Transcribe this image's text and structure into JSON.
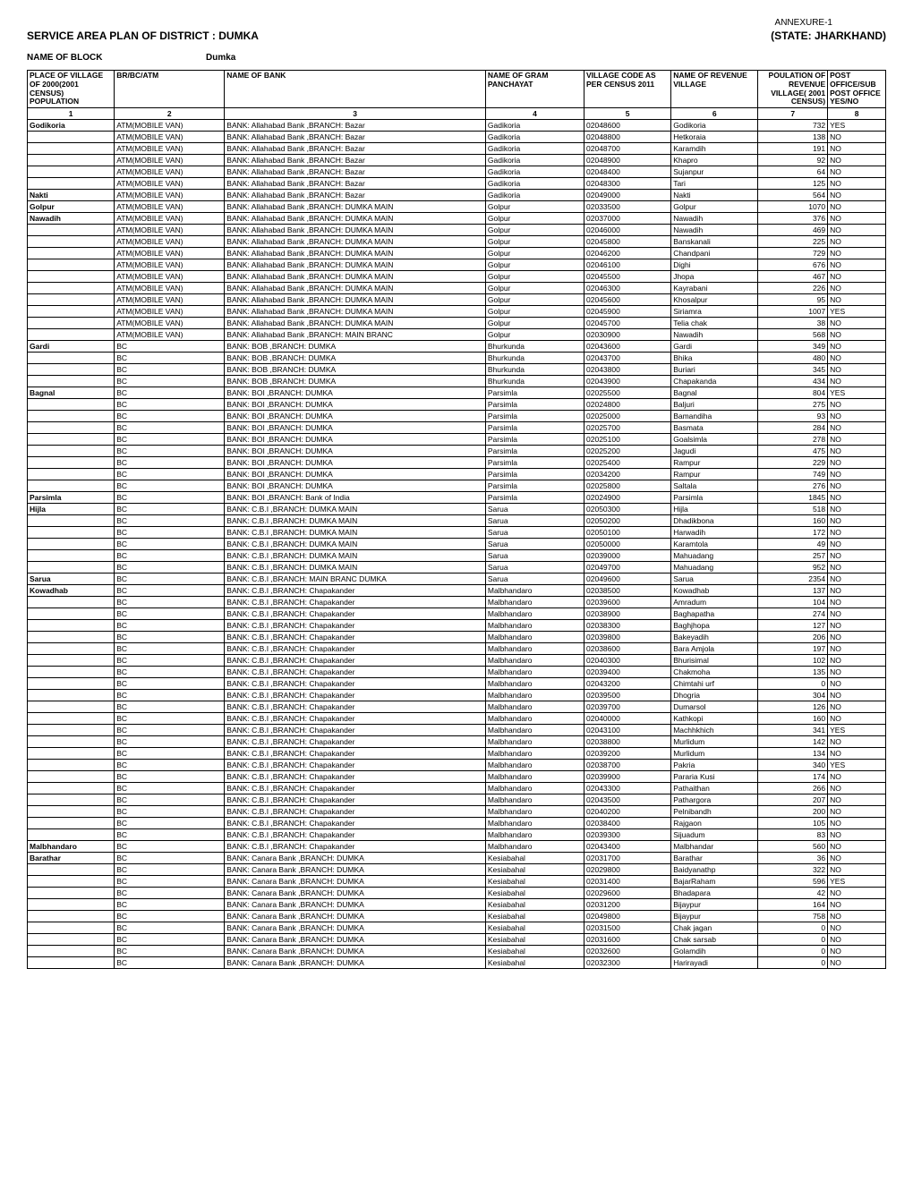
{
  "header": {
    "annexure": "ANNEXURE-1",
    "title_left": "SERVICE AREA PLAN OF DISTRICT : DUMKA",
    "title_right": "(STATE: JHARKHAND)",
    "block_label": "NAME OF BLOCK",
    "block_value": "Dumka"
  },
  "columns": [
    "PLACE OF VILLAGE OF 2000(2001 CENSUS) POPULATION",
    "BR/BC/ATM",
    "NAME OF BANK",
    "NAME OF GRAM PANCHAYAT",
    "VILLAGE CODE AS PER CENSUS 2011",
    "NAME OF REVENUE VILLAGE",
    "POULATION OF REVENUE VILLAGE( 2001 CENSUS)",
    "POST OFFICE/SUB POST OFFICE YES/NO"
  ],
  "col_nums": [
    "1",
    "2",
    "3",
    "4",
    "5",
    "6",
    "7",
    "8"
  ],
  "rows": [
    [
      "Godikoria",
      "ATM(MOBILE VAN)",
      "BANK: Allahabad Bank ,BRANCH: Bazar",
      "Gadikoria",
      "02048600",
      "Godikoria",
      "732",
      "YES",
      true
    ],
    [
      "",
      "ATM(MOBILE VAN)",
      "BANK: Allahabad Bank ,BRANCH: Bazar",
      "Gadikoria",
      "02048800",
      "Hetkoraia",
      "138",
      "NO",
      false
    ],
    [
      "",
      "ATM(MOBILE VAN)",
      "BANK: Allahabad Bank ,BRANCH: Bazar",
      "Gadikoria",
      "02048700",
      "Karamdih",
      "191",
      "NO",
      false
    ],
    [
      "",
      "ATM(MOBILE VAN)",
      "BANK: Allahabad Bank ,BRANCH: Bazar",
      "Gadikoria",
      "02048900",
      "Khapro",
      "92",
      "NO",
      false
    ],
    [
      "",
      "ATM(MOBILE VAN)",
      "BANK: Allahabad Bank ,BRANCH: Bazar",
      "Gadikoria",
      "02048400",
      "Sujanpur",
      "64",
      "NO",
      false
    ],
    [
      "",
      "ATM(MOBILE VAN)",
      "BANK: Allahabad Bank ,BRANCH: Bazar",
      "Gadikoria",
      "02048300",
      "Tari",
      "125",
      "NO",
      false
    ],
    [
      "Nakti",
      "ATM(MOBILE VAN)",
      "BANK: Allahabad Bank ,BRANCH: Bazar",
      "Gadikoria",
      "02049000",
      "Nakti",
      "564",
      "NO",
      true
    ],
    [
      "Golpur",
      "ATM(MOBILE VAN)",
      "BANK: Allahabad Bank ,BRANCH: DUMKA MAIN",
      "Golpur",
      "02033500",
      "Golpur",
      "1070",
      "NO",
      true
    ],
    [
      "Nawadih",
      "ATM(MOBILE VAN)",
      "BANK: Allahabad Bank ,BRANCH: DUMKA MAIN",
      "Golpur",
      "02037000",
      "Nawadih",
      "376",
      "NO",
      true
    ],
    [
      "",
      "ATM(MOBILE VAN)",
      "BANK: Allahabad Bank ,BRANCH: DUMKA MAIN",
      "Golpur",
      "02046000",
      "Nawadih",
      "469",
      "NO",
      false
    ],
    [
      "",
      "ATM(MOBILE VAN)",
      "BANK: Allahabad Bank ,BRANCH: DUMKA MAIN",
      "Golpur",
      "02045800",
      "Banskanali",
      "225",
      "NO",
      false
    ],
    [
      "",
      "ATM(MOBILE VAN)",
      "BANK: Allahabad Bank ,BRANCH: DUMKA MAIN",
      "Golpur",
      "02046200",
      "Chandpani",
      "729",
      "NO",
      false
    ],
    [
      "",
      "ATM(MOBILE VAN)",
      "BANK: Allahabad Bank ,BRANCH: DUMKA MAIN",
      "Golpur",
      "02046100",
      "Dighi",
      "676",
      "NO",
      false
    ],
    [
      "",
      "ATM(MOBILE VAN)",
      "BANK: Allahabad Bank ,BRANCH: DUMKA MAIN",
      "Golpur",
      "02045500",
      "Jhopa",
      "467",
      "NO",
      false
    ],
    [
      "",
      "ATM(MOBILE VAN)",
      "BANK: Allahabad Bank ,BRANCH: DUMKA MAIN",
      "Golpur",
      "02046300",
      "Kayrabani",
      "226",
      "NO",
      false
    ],
    [
      "",
      "ATM(MOBILE VAN)",
      "BANK: Allahabad Bank ,BRANCH: DUMKA MAIN",
      "Golpur",
      "02045600",
      "Khosalpur",
      "95",
      "NO",
      false
    ],
    [
      "",
      "ATM(MOBILE VAN)",
      "BANK: Allahabad Bank ,BRANCH: DUMKA MAIN",
      "Golpur",
      "02045900",
      "Siriamra",
      "1007",
      "YES",
      false
    ],
    [
      "",
      "ATM(MOBILE VAN)",
      "BANK: Allahabad Bank ,BRANCH: DUMKA MAIN",
      "Golpur",
      "02045700",
      "Telia chak",
      "38",
      "NO",
      false
    ],
    [
      "",
      "ATM(MOBILE VAN)",
      "BANK: Allahabad Bank ,BRANCH: MAIN BRANC",
      "Golpur",
      "02030900",
      "Nawadih",
      "568",
      "NO",
      false
    ],
    [
      "Gardi",
      "BC",
      "BANK: BOB ,BRANCH: DUMKA",
      "Bhurkunda",
      "02043600",
      "Gardi",
      "349",
      "NO",
      true
    ],
    [
      "",
      "BC",
      "BANK: BOB ,BRANCH: DUMKA",
      "Bhurkunda",
      "02043700",
      "Bhika",
      "480",
      "NO",
      false
    ],
    [
      "",
      "BC",
      "BANK: BOB ,BRANCH: DUMKA",
      "Bhurkunda",
      "02043800",
      "Buriari",
      "345",
      "NO",
      false
    ],
    [
      "",
      "BC",
      "BANK: BOB ,BRANCH: DUMKA",
      "Bhurkunda",
      "02043900",
      "Chapakanda",
      "434",
      "NO",
      false
    ],
    [
      "Bagnal",
      "BC",
      "BANK: BOI ,BRANCH: DUMKA",
      "Parsimla",
      "02025500",
      "Bagnal",
      "804",
      "YES",
      true
    ],
    [
      "",
      "BC",
      "BANK: BOI ,BRANCH: DUMKA",
      "Parsimla",
      "02024800",
      "Baljuri",
      "275",
      "NO",
      false
    ],
    [
      "",
      "BC",
      "BANK: BOI ,BRANCH: DUMKA",
      "Parsimla",
      "02025000",
      "Bamandiha",
      "93",
      "NO",
      false
    ],
    [
      "",
      "BC",
      "BANK: BOI ,BRANCH: DUMKA",
      "Parsimla",
      "02025700",
      "Basmata",
      "284",
      "NO",
      false
    ],
    [
      "",
      "BC",
      "BANK: BOI ,BRANCH: DUMKA",
      "Parsimla",
      "02025100",
      "Goalsimla",
      "278",
      "NO",
      false
    ],
    [
      "",
      "BC",
      "BANK: BOI ,BRANCH: DUMKA",
      "Parsimla",
      "02025200",
      "Jagudi",
      "475",
      "NO",
      false
    ],
    [
      "",
      "BC",
      "BANK: BOI ,BRANCH: DUMKA",
      "Parsimla",
      "02025400",
      "Rampur",
      "229",
      "NO",
      false
    ],
    [
      "",
      "BC",
      "BANK: BOI ,BRANCH: DUMKA",
      "Parsimla",
      "02034200",
      "Rampur",
      "749",
      "NO",
      false
    ],
    [
      "",
      "BC",
      "BANK: BOI ,BRANCH: DUMKA",
      "Parsimla",
      "02025800",
      "Saltala",
      "276",
      "NO",
      false
    ],
    [
      "Parsimla",
      "BC",
      "BANK: BOI ,BRANCH: Bank of India",
      "Parsimla",
      "02024900",
      "Parsimla",
      "1845",
      "NO",
      true
    ],
    [
      "Hijla",
      "BC",
      "BANK: C.B.I ,BRANCH: DUMKA MAIN",
      "Sarua",
      "02050300",
      "Hijla",
      "518",
      "NO",
      true
    ],
    [
      "",
      "BC",
      "BANK: C.B.I ,BRANCH: DUMKA MAIN",
      "Sarua",
      "02050200",
      "Dhadikbona",
      "160",
      "NO",
      false
    ],
    [
      "",
      "BC",
      "BANK: C.B.I ,BRANCH: DUMKA MAIN",
      "Sarua",
      "02050100",
      "Harwadih",
      "172",
      "NO",
      false
    ],
    [
      "",
      "BC",
      "BANK: C.B.I ,BRANCH: DUMKA MAIN",
      "Sarua",
      "02050000",
      "Karamtola",
      "49",
      "NO",
      false
    ],
    [
      "",
      "BC",
      "BANK: C.B.I ,BRANCH: DUMKA MAIN",
      "Sarua",
      "02039000",
      "Mahuadang",
      "257",
      "NO",
      false
    ],
    [
      "",
      "BC",
      "BANK: C.B.I ,BRANCH: DUMKA MAIN",
      "Sarua",
      "02049700",
      "Mahuadang",
      "952",
      "NO",
      false
    ],
    [
      "Sarua",
      "BC",
      "BANK: C.B.I ,BRANCH: MAIN BRANC DUMKA",
      "Sarua",
      "02049600",
      "Sarua",
      "2354",
      "NO",
      true
    ],
    [
      "Kowadhab",
      "BC",
      "BANK: C.B.I ,BRANCH: Chapakander",
      "Malbhandaro",
      "02038500",
      "Kowadhab",
      "137",
      "NO",
      true
    ],
    [
      "",
      "BC",
      "BANK: C.B.I ,BRANCH: Chapakander",
      "Malbhandaro",
      "02039600",
      "Amradum",
      "104",
      "NO",
      false
    ],
    [
      "",
      "BC",
      "BANK: C.B.I ,BRANCH: Chapakander",
      "Malbhandaro",
      "02038900",
      "Baghapatha",
      "274",
      "NO",
      false
    ],
    [
      "",
      "BC",
      "BANK: C.B.I ,BRANCH: Chapakander",
      "Malbhandaro",
      "02038300",
      "Baghjhopa",
      "127",
      "NO",
      false
    ],
    [
      "",
      "BC",
      "BANK: C.B.I ,BRANCH: Chapakander",
      "Malbhandaro",
      "02039800",
      "Bakeyadih",
      "206",
      "NO",
      false
    ],
    [
      "",
      "BC",
      "BANK: C.B.I ,BRANCH: Chapakander",
      "Malbhandaro",
      "02038600",
      "Bara Amjola",
      "197",
      "NO",
      false
    ],
    [
      "",
      "BC",
      "BANK: C.B.I ,BRANCH: Chapakander",
      "Malbhandaro",
      "02040300",
      "Bhurisimal",
      "102",
      "NO",
      false
    ],
    [
      "",
      "BC",
      "BANK: C.B.I ,BRANCH: Chapakander",
      "Malbhandaro",
      "02039400",
      "Chakmoha",
      "135",
      "NO",
      false
    ],
    [
      "",
      "BC",
      "BANK: C.B.I ,BRANCH: Chapakander",
      "Malbhandaro",
      "02043200",
      "Chimtahi urf",
      "0",
      "NO",
      false
    ],
    [
      "",
      "BC",
      "BANK: C.B.I ,BRANCH: Chapakander",
      "Malbhandaro",
      "02039500",
      "Dhogria",
      "304",
      "NO",
      false
    ],
    [
      "",
      "BC",
      "BANK: C.B.I ,BRANCH: Chapakander",
      "Malbhandaro",
      "02039700",
      "Dumarsol",
      "126",
      "NO",
      false
    ],
    [
      "",
      "BC",
      "BANK: C.B.I ,BRANCH: Chapakander",
      "Malbhandaro",
      "02040000",
      "Kathkopi",
      "160",
      "NO",
      false
    ],
    [
      "",
      "BC",
      "BANK: C.B.I ,BRANCH: Chapakander",
      "Malbhandaro",
      "02043100",
      "Machhkhich",
      "341",
      "YES",
      false
    ],
    [
      "",
      "BC",
      "BANK: C.B.I ,BRANCH: Chapakander",
      "Malbhandaro",
      "02038800",
      "Murlidum",
      "142",
      "NO",
      false
    ],
    [
      "",
      "BC",
      "BANK: C.B.I ,BRANCH: Chapakander",
      "Malbhandaro",
      "02039200",
      "Murlidum",
      "134",
      "NO",
      false
    ],
    [
      "",
      "BC",
      "BANK: C.B.I ,BRANCH: Chapakander",
      "Malbhandaro",
      "02038700",
      "Pakria",
      "340",
      "YES",
      false
    ],
    [
      "",
      "BC",
      "BANK: C.B.I ,BRANCH: Chapakander",
      "Malbhandaro",
      "02039900",
      "Pararia Kusi",
      "174",
      "NO",
      false
    ],
    [
      "",
      "BC",
      "BANK: C.B.I ,BRANCH: Chapakander",
      "Malbhandaro",
      "02043300",
      "Pathaithan",
      "266",
      "NO",
      false
    ],
    [
      "",
      "BC",
      "BANK: C.B.I ,BRANCH: Chapakander",
      "Malbhandaro",
      "02043500",
      "Pathargora",
      "207",
      "NO",
      false
    ],
    [
      "",
      "BC",
      "BANK: C.B.I ,BRANCH: Chapakander",
      "Malbhandaro",
      "02040200",
      "Pelnibandh",
      "200",
      "NO",
      false
    ],
    [
      "",
      "BC",
      "BANK: C.B.I ,BRANCH: Chapakander",
      "Malbhandaro",
      "02038400",
      "Rajgaon",
      "105",
      "NO",
      false
    ],
    [
      "",
      "BC",
      "BANK: C.B.I ,BRANCH: Chapakander",
      "Malbhandaro",
      "02039300",
      "Sijuadum",
      "83",
      "NO",
      false
    ],
    [
      "Malbhandaro",
      "BC",
      "BANK: C.B.I ,BRANCH: Chapakander",
      "Malbhandaro",
      "02043400",
      "Malbhandar",
      "560",
      "NO",
      true
    ],
    [
      "Barathar",
      "BC",
      "BANK: Canara Bank ,BRANCH: DUMKA",
      "Kesiabahal",
      "02031700",
      "Barathar",
      "36",
      "NO",
      true
    ],
    [
      "",
      "BC",
      "BANK: Canara Bank ,BRANCH: DUMKA",
      "Kesiabahal",
      "02029800",
      "Baidyanathp",
      "322",
      "NO",
      false
    ],
    [
      "",
      "BC",
      "BANK: Canara Bank ,BRANCH: DUMKA",
      "Kesiabahal",
      "02031400",
      "BajarRaham",
      "596",
      "YES",
      false
    ],
    [
      "",
      "BC",
      "BANK: Canara Bank ,BRANCH: DUMKA",
      "Kesiabahal",
      "02029600",
      "Bhadapara",
      "42",
      "NO",
      false
    ],
    [
      "",
      "BC",
      "BANK: Canara Bank ,BRANCH: DUMKA",
      "Kesiabahal",
      "02031200",
      "Bijaypur",
      "164",
      "NO",
      false
    ],
    [
      "",
      "BC",
      "BANK: Canara Bank ,BRANCH: DUMKA",
      "Kesiabahal",
      "02049800",
      "Bijaypur",
      "758",
      "NO",
      false
    ],
    [
      "",
      "BC",
      "BANK: Canara Bank ,BRANCH: DUMKA",
      "Kesiabahal",
      "02031500",
      "Chak jagan",
      "0",
      "NO",
      false
    ],
    [
      "",
      "BC",
      "BANK: Canara Bank ,BRANCH: DUMKA",
      "Kesiabahal",
      "02031600",
      "Chak sarsab",
      "0",
      "NO",
      false
    ],
    [
      "",
      "BC",
      "BANK: Canara Bank ,BRANCH: DUMKA",
      "Kesiabahal",
      "02032600",
      "Golamdih",
      "0",
      "NO",
      false
    ],
    [
      "",
      "BC",
      "BANK: Canara Bank ,BRANCH: DUMKA",
      "Kesiabahal",
      "02032300",
      "Harirayadi",
      "0",
      "NO",
      false
    ]
  ]
}
